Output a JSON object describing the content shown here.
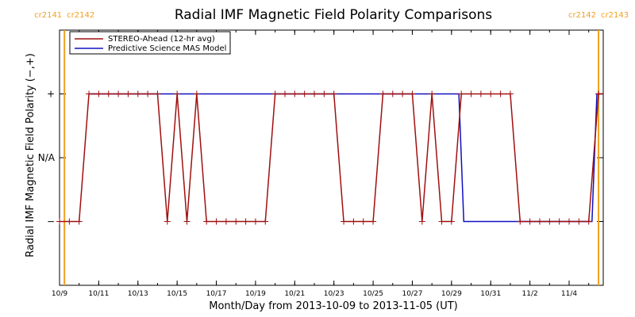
{
  "chart_data": {
    "type": "line",
    "title": "Radial IMF Magnetic Field Polarity Comparisons",
    "xlabel": "Month/Day from 2013-10-09 to 2013-11-05 (UT)",
    "ylabel": "Radial IMF Magnetic Field Polarity (−,+)",
    "x_tick_labels": [
      "10/9",
      "10/11",
      "10/13",
      "10/15",
      "10/17",
      "10/19",
      "10/21",
      "10/23",
      "10/25",
      "10/27",
      "10/29",
      "10/31",
      "11/2",
      "11/4"
    ],
    "x_tick_dates": [
      "2013-10-09",
      "2013-10-11",
      "2013-10-13",
      "2013-10-15",
      "2013-10-17",
      "2013-10-19",
      "2013-10-21",
      "2013-10-23",
      "2013-10-25",
      "2013-10-27",
      "2013-10-29",
      "2013-10-31",
      "2013-11-02",
      "2013-11-04"
    ],
    "xlim": [
      "2013-10-09",
      "2013-11-05"
    ],
    "y_categories": [
      "−",
      "N/A",
      "+"
    ],
    "y_category_values": [
      -1,
      0,
      1
    ],
    "ylim": [
      -2,
      2
    ],
    "carrington_markers": [
      {
        "date": "2013-10-09 06:00",
        "label_left": "cr2141",
        "label_right": "cr2142"
      },
      {
        "date": "2013-11-05 12:00",
        "label_left": "cr2142",
        "label_right": "cr2143"
      }
    ],
    "legend": {
      "position": "top-left"
    },
    "series": [
      {
        "name": "STEREO-Ahead (12-hr avg)",
        "color": "#a01010",
        "marker": "plus",
        "points": [
          [
            "2013-10-09 00:00",
            -1
          ],
          [
            "2013-10-09 12:00",
            -1
          ],
          [
            "2013-10-10 00:00",
            -1
          ],
          [
            "2013-10-10 12:00",
            1
          ],
          [
            "2013-10-11 00:00",
            1
          ],
          [
            "2013-10-11 12:00",
            1
          ],
          [
            "2013-10-12 00:00",
            1
          ],
          [
            "2013-10-12 12:00",
            1
          ],
          [
            "2013-10-13 00:00",
            1
          ],
          [
            "2013-10-13 12:00",
            1
          ],
          [
            "2013-10-14 00:00",
            1
          ],
          [
            "2013-10-14 12:00",
            -1
          ],
          [
            "2013-10-15 00:00",
            1
          ],
          [
            "2013-10-15 12:00",
            -1
          ],
          [
            "2013-10-16 00:00",
            1
          ],
          [
            "2013-10-16 12:00",
            -1
          ],
          [
            "2013-10-17 00:00",
            -1
          ],
          [
            "2013-10-17 12:00",
            -1
          ],
          [
            "2013-10-18 00:00",
            -1
          ],
          [
            "2013-10-18 12:00",
            -1
          ],
          [
            "2013-10-19 00:00",
            -1
          ],
          [
            "2013-10-19 12:00",
            -1
          ],
          [
            "2013-10-20 00:00",
            1
          ],
          [
            "2013-10-20 12:00",
            1
          ],
          [
            "2013-10-21 00:00",
            1
          ],
          [
            "2013-10-21 12:00",
            1
          ],
          [
            "2013-10-22 00:00",
            1
          ],
          [
            "2013-10-22 12:00",
            1
          ],
          [
            "2013-10-23 00:00",
            1
          ],
          [
            "2013-10-23 12:00",
            -1
          ],
          [
            "2013-10-24 00:00",
            -1
          ],
          [
            "2013-10-24 12:00",
            -1
          ],
          [
            "2013-10-25 00:00",
            -1
          ],
          [
            "2013-10-25 12:00",
            1
          ],
          [
            "2013-10-26 00:00",
            1
          ],
          [
            "2013-10-26 12:00",
            1
          ],
          [
            "2013-10-27 00:00",
            1
          ],
          [
            "2013-10-27 12:00",
            -1
          ],
          [
            "2013-10-28 00:00",
            1
          ],
          [
            "2013-10-28 12:00",
            -1
          ],
          [
            "2013-10-29 00:00",
            -1
          ],
          [
            "2013-10-29 12:00",
            1
          ],
          [
            "2013-10-30 00:00",
            1
          ],
          [
            "2013-10-30 12:00",
            1
          ],
          [
            "2013-10-31 00:00",
            1
          ],
          [
            "2013-10-31 12:00",
            1
          ],
          [
            "2013-11-01 00:00",
            1
          ],
          [
            "2013-11-01 12:00",
            -1
          ],
          [
            "2013-11-02 00:00",
            -1
          ],
          [
            "2013-11-02 12:00",
            -1
          ],
          [
            "2013-11-03 00:00",
            -1
          ],
          [
            "2013-11-03 12:00",
            -1
          ],
          [
            "2013-11-04 00:00",
            -1
          ],
          [
            "2013-11-04 12:00",
            -1
          ],
          [
            "2013-11-05 00:00",
            -1
          ],
          [
            "2013-11-05 12:00",
            1
          ],
          [
            "2013-11-06 00:00",
            1
          ],
          [
            "2013-11-06 12:00",
            1
          ]
        ]
      },
      {
        "name": "Predictive Science MAS Model",
        "color": "#1010c0",
        "marker": "none",
        "points": [
          [
            "2013-10-10 12:00",
            1
          ],
          [
            "2013-10-29 09:00",
            1
          ],
          [
            "2013-10-29 15:00",
            -1
          ],
          [
            "2013-11-05 04:00",
            -1
          ],
          [
            "2013-11-05 10:00",
            1
          ],
          [
            "2013-11-06 12:00",
            1
          ]
        ]
      }
    ]
  }
}
